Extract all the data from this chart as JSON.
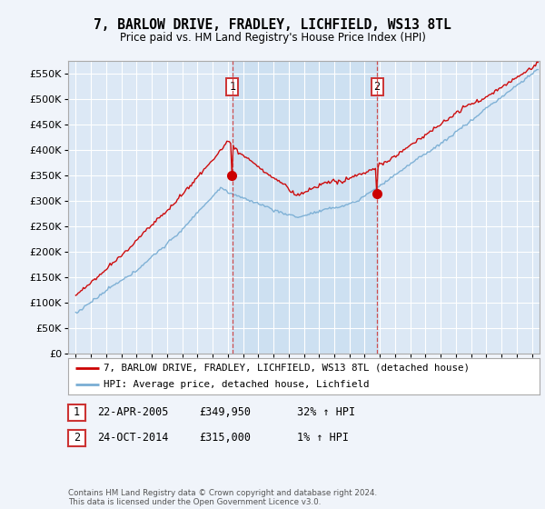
{
  "title": "7, BARLOW DRIVE, FRADLEY, LICHFIELD, WS13 8TL",
  "subtitle": "Price paid vs. HM Land Registry's House Price Index (HPI)",
  "red_label": "7, BARLOW DRIVE, FRADLEY, LICHFIELD, WS13 8TL (detached house)",
  "blue_label": "HPI: Average price, detached house, Lichfield",
  "transaction1": {
    "num": 1,
    "date": "22-APR-2005",
    "price": "£349,950",
    "pct": "32% ↑ HPI"
  },
  "transaction2": {
    "num": 2,
    "date": "24-OCT-2014",
    "price": "£315,000",
    "pct": "1% ↑ HPI"
  },
  "vline1_date": 2005.31,
  "vline2_date": 2014.81,
  "sale1_price": 349950,
  "sale2_price": 315000,
  "footer": "Contains HM Land Registry data © Crown copyright and database right 2024.\nThis data is licensed under the Open Government Licence v3.0.",
  "ylim": [
    0,
    575000
  ],
  "xlim_start": 1994.5,
  "xlim_end": 2025.5,
  "bg_color": "#f0f4fa",
  "plot_bg": "#dce8f5",
  "shade_color": "#c8ddf0",
  "red_color": "#cc0000",
  "blue_color": "#7aaed4",
  "grid_color": "#ffffff",
  "vline_color": "#cc3333"
}
